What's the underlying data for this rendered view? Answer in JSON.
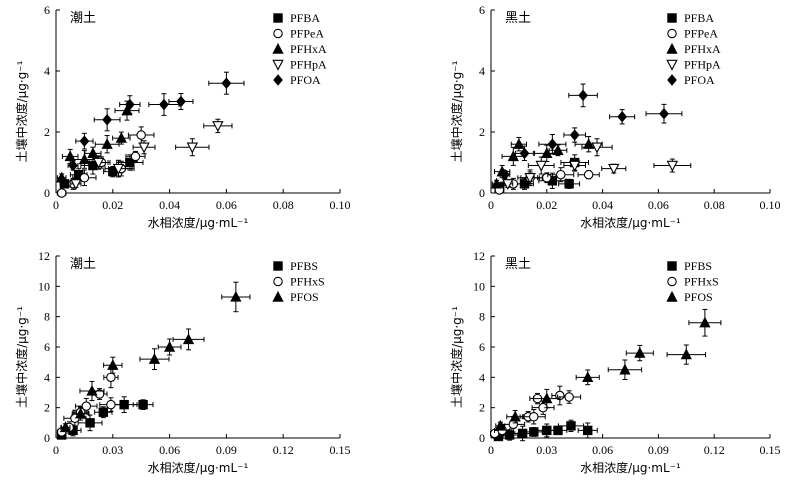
{
  "chart_data": [
    {
      "type": "scatter",
      "title": "潮土",
      "xlabel": "水相浓度/μg·mL⁻¹",
      "ylabel": "土壤中浓度/μg·g⁻¹",
      "xlim": [
        0,
        0.1
      ],
      "ylim": [
        0,
        6
      ],
      "xticks": [
        "0",
        "0.02",
        "0.04",
        "0.06",
        "0.08",
        "0.10"
      ],
      "yticks": [
        "0",
        "2",
        "4",
        "6"
      ],
      "legend_position": "top-right",
      "series": [
        {
          "name": "PFBA",
          "marker": "square-filled",
          "points": [
            {
              "x": 0.003,
              "y": 0.3
            },
            {
              "x": 0.008,
              "y": 0.6
            },
            {
              "x": 0.013,
              "y": 0.9
            },
            {
              "x": 0.02,
              "y": 0.7
            },
            {
              "x": 0.026,
              "y": 1.0
            }
          ]
        },
        {
          "name": "PFPeA",
          "marker": "circle-open",
          "points": [
            {
              "x": 0.002,
              "y": 0.0
            },
            {
              "x": 0.006,
              "y": 0.3
            },
            {
              "x": 0.01,
              "y": 0.5
            },
            {
              "x": 0.016,
              "y": 1.0
            },
            {
              "x": 0.023,
              "y": 0.8
            },
            {
              "x": 0.028,
              "y": 1.2
            },
            {
              "x": 0.03,
              "y": 1.9
            }
          ]
        },
        {
          "name": "PFHxA",
          "marker": "triangle-filled",
          "points": [
            {
              "x": 0.002,
              "y": 0.5
            },
            {
              "x": 0.005,
              "y": 1.2
            },
            {
              "x": 0.01,
              "y": 1.1
            },
            {
              "x": 0.013,
              "y": 1.3
            },
            {
              "x": 0.018,
              "y": 1.6
            },
            {
              "x": 0.023,
              "y": 1.8
            },
            {
              "x": 0.025,
              "y": 2.7
            }
          ]
        },
        {
          "name": "PFHpA",
          "marker": "triangle-open-down",
          "points": [
            {
              "x": 0.007,
              "y": 0.3
            },
            {
              "x": 0.015,
              "y": 1.0
            },
            {
              "x": 0.022,
              "y": 0.8
            },
            {
              "x": 0.031,
              "y": 1.5
            },
            {
              "x": 0.048,
              "y": 1.5
            },
            {
              "x": 0.057,
              "y": 2.2
            }
          ]
        },
        {
          "name": "PFOA",
          "marker": "diamond-filled",
          "points": [
            {
              "x": 0.006,
              "y": 0.9
            },
            {
              "x": 0.01,
              "y": 1.7
            },
            {
              "x": 0.018,
              "y": 2.4
            },
            {
              "x": 0.026,
              "y": 2.9
            },
            {
              "x": 0.038,
              "y": 2.9
            },
            {
              "x": 0.044,
              "y": 3.0
            },
            {
              "x": 0.06,
              "y": 3.6
            }
          ]
        }
      ]
    },
    {
      "type": "scatter",
      "title": "黑土",
      "xlabel": "水相浓度/μg·mL⁻¹",
      "ylabel": "土壤中浓度/μg·g⁻¹",
      "xlim": [
        0,
        0.1
      ],
      "ylim": [
        0,
        6
      ],
      "xticks": [
        "0",
        "0.02",
        "0.04",
        "0.06",
        "0.08",
        "0.10"
      ],
      "yticks": [
        "0",
        "2",
        "4",
        "6"
      ],
      "legend_position": "top-right",
      "series": [
        {
          "name": "PFBA",
          "marker": "square-filled",
          "points": [
            {
              "x": 0.003,
              "y": 0.2
            },
            {
              "x": 0.012,
              "y": 0.3
            },
            {
              "x": 0.022,
              "y": 0.4
            },
            {
              "x": 0.028,
              "y": 0.3
            },
            {
              "x": 0.03,
              "y": 1.0
            }
          ]
        },
        {
          "name": "PFPeA",
          "marker": "circle-open",
          "points": [
            {
              "x": 0.003,
              "y": 0.1
            },
            {
              "x": 0.008,
              "y": 0.3
            },
            {
              "x": 0.014,
              "y": 0.5
            },
            {
              "x": 0.02,
              "y": 0.5
            },
            {
              "x": 0.025,
              "y": 0.6
            },
            {
              "x": 0.035,
              "y": 0.6
            }
          ]
        },
        {
          "name": "PFHxA",
          "marker": "triangle-filled",
          "points": [
            {
              "x": 0.002,
              "y": 0.3
            },
            {
              "x": 0.004,
              "y": 0.7
            },
            {
              "x": 0.008,
              "y": 1.2
            },
            {
              "x": 0.01,
              "y": 1.6
            },
            {
              "x": 0.02,
              "y": 1.3
            },
            {
              "x": 0.024,
              "y": 1.4
            },
            {
              "x": 0.035,
              "y": 1.6
            }
          ]
        },
        {
          "name": "PFHpA",
          "marker": "triangle-open-down",
          "points": [
            {
              "x": 0.006,
              "y": 0.3
            },
            {
              "x": 0.014,
              "y": 0.5
            },
            {
              "x": 0.018,
              "y": 0.9
            },
            {
              "x": 0.03,
              "y": 0.9
            },
            {
              "x": 0.038,
              "y": 1.5
            },
            {
              "x": 0.044,
              "y": 0.8
            },
            {
              "x": 0.065,
              "y": 0.9
            }
          ]
        },
        {
          "name": "PFOA",
          "marker": "diamond-filled",
          "points": [
            {
              "x": 0.005,
              "y": 0.6
            },
            {
              "x": 0.012,
              "y": 1.3
            },
            {
              "x": 0.022,
              "y": 1.6
            },
            {
              "x": 0.03,
              "y": 1.9
            },
            {
              "x": 0.033,
              "y": 3.2
            },
            {
              "x": 0.047,
              "y": 2.5
            },
            {
              "x": 0.062,
              "y": 2.6
            }
          ]
        }
      ]
    },
    {
      "type": "scatter",
      "title": "潮土",
      "xlabel": "水相浓度/μg·mL⁻¹",
      "ylabel": "土壤中浓度/μg·g⁻¹",
      "xlim": [
        0,
        0.15
      ],
      "ylim": [
        0,
        12
      ],
      "xticks": [
        "0",
        "0.03",
        "0.06",
        "0.09",
        "0.12",
        "0.15"
      ],
      "yticks": [
        "0",
        "2",
        "4",
        "6",
        "8",
        "10",
        "12"
      ],
      "legend_position": "top-right",
      "series": [
        {
          "name": "PFBS",
          "marker": "square-filled",
          "points": [
            {
              "x": 0.003,
              "y": 0.2
            },
            {
              "x": 0.009,
              "y": 0.5
            },
            {
              "x": 0.018,
              "y": 1.0
            },
            {
              "x": 0.025,
              "y": 1.7
            },
            {
              "x": 0.036,
              "y": 2.2
            },
            {
              "x": 0.046,
              "y": 2.2
            }
          ]
        },
        {
          "name": "PFHxS",
          "marker": "circle-open",
          "points": [
            {
              "x": 0.003,
              "y": 0.4
            },
            {
              "x": 0.007,
              "y": 0.7
            },
            {
              "x": 0.01,
              "y": 1.3
            },
            {
              "x": 0.013,
              "y": 1.7
            },
            {
              "x": 0.016,
              "y": 2.1
            },
            {
              "x": 0.023,
              "y": 2.9
            },
            {
              "x": 0.029,
              "y": 2.2
            },
            {
              "x": 0.029,
              "y": 4.0
            }
          ]
        },
        {
          "name": "PFOS",
          "marker": "triangle-filled",
          "points": [
            {
              "x": 0.005,
              "y": 0.7
            },
            {
              "x": 0.013,
              "y": 1.6
            },
            {
              "x": 0.019,
              "y": 3.1
            },
            {
              "x": 0.03,
              "y": 4.8
            },
            {
              "x": 0.052,
              "y": 5.2
            },
            {
              "x": 0.06,
              "y": 6.0
            },
            {
              "x": 0.07,
              "y": 6.5
            },
            {
              "x": 0.095,
              "y": 9.3
            }
          ]
        }
      ]
    },
    {
      "type": "scatter",
      "title": "黑土",
      "xlabel": "水相浓度/μg·mL⁻¹",
      "ylabel": "土壤中浓度/μg·g⁻¹",
      "xlim": [
        0,
        0.15
      ],
      "ylim": [
        0,
        12
      ],
      "xticks": [
        "0",
        "0.03",
        "0.06",
        "0.09",
        "0.12",
        "0.15"
      ],
      "yticks": [
        "0",
        "2",
        "4",
        "6",
        "8",
        "10",
        "12"
      ],
      "legend_position": "top-right",
      "series": [
        {
          "name": "PFBS",
          "marker": "square-filled",
          "points": [
            {
              "x": 0.004,
              "y": 0.1
            },
            {
              "x": 0.01,
              "y": 0.2
            },
            {
              "x": 0.017,
              "y": 0.3
            },
            {
              "x": 0.023,
              "y": 0.4
            },
            {
              "x": 0.03,
              "y": 0.5
            },
            {
              "x": 0.036,
              "y": 0.5
            },
            {
              "x": 0.043,
              "y": 0.8
            },
            {
              "x": 0.052,
              "y": 0.5
            }
          ]
        },
        {
          "name": "PFHxS",
          "marker": "circle-open",
          "points": [
            {
              "x": 0.002,
              "y": 0.3
            },
            {
              "x": 0.006,
              "y": 0.5
            },
            {
              "x": 0.012,
              "y": 0.9
            },
            {
              "x": 0.02,
              "y": 1.4
            },
            {
              "x": 0.023,
              "y": 1.4
            },
            {
              "x": 0.025,
              "y": 2.6
            },
            {
              "x": 0.028,
              "y": 2.0
            },
            {
              "x": 0.037,
              "y": 2.8
            },
            {
              "x": 0.042,
              "y": 2.7
            }
          ]
        },
        {
          "name": "PFOS",
          "marker": "triangle-filled",
          "points": [
            {
              "x": 0.005,
              "y": 0.8
            },
            {
              "x": 0.013,
              "y": 1.4
            },
            {
              "x": 0.03,
              "y": 2.6
            },
            {
              "x": 0.052,
              "y": 4.0
            },
            {
              "x": 0.072,
              "y": 4.5
            },
            {
              "x": 0.08,
              "y": 5.6
            },
            {
              "x": 0.105,
              "y": 5.5
            },
            {
              "x": 0.115,
              "y": 7.6
            }
          ]
        }
      ]
    }
  ]
}
